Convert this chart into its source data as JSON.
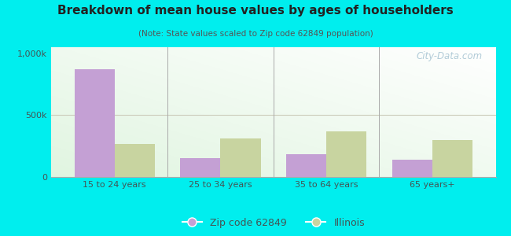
{
  "title": "Breakdown of mean house values by ages of householders",
  "subtitle": "(Note: State values scaled to Zip code 62849 population)",
  "categories": [
    "15 to 24 years",
    "25 to 34 years",
    "35 to 64 years",
    "65 years+"
  ],
  "zip_values": [
    875000,
    150000,
    185000,
    140000
  ],
  "il_values": [
    265000,
    310000,
    370000,
    300000
  ],
  "zip_color": "#c4a0d4",
  "il_color": "#c8d4a0",
  "background_color": "#00eeee",
  "ylim": [
    0,
    1050000
  ],
  "yticks": [
    0,
    500000,
    1000000
  ],
  "ytick_labels": [
    "0",
    "500k",
    "1,000k"
  ],
  "bar_width": 0.38,
  "legend_labels": [
    "Zip code 62849",
    "Illinois"
  ],
  "watermark": "City-Data.com"
}
